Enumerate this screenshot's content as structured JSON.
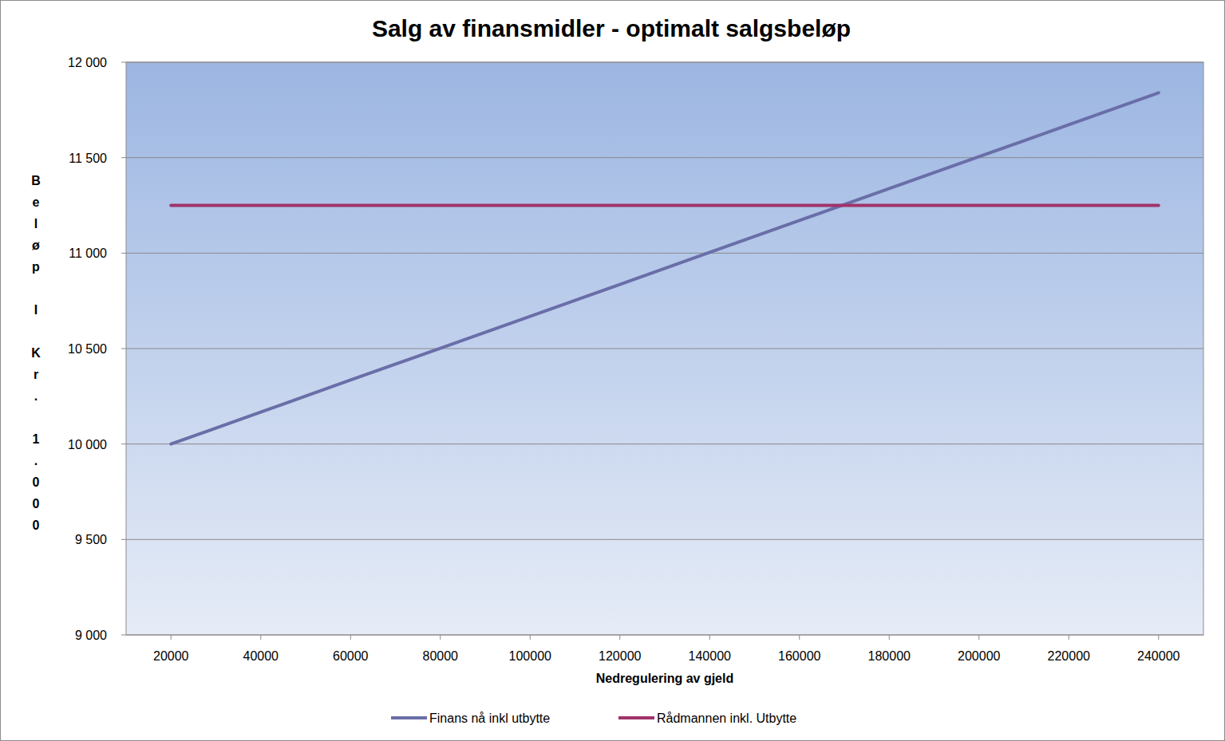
{
  "chart_data": {
    "type": "line",
    "title": "Salg av finansmidler - optimalt salgsbeløp",
    "x_label": "Nedregulering av gjeld",
    "y_label": "Beløp I Kr. 1.000",
    "x": [
      20000,
      40000,
      60000,
      80000,
      100000,
      120000,
      140000,
      160000,
      180000,
      200000,
      220000,
      240000
    ],
    "series": [
      {
        "name": "Finans nå inkl utbytte",
        "color": "#6a6ea8",
        "values": [
          10000,
          10167,
          10335,
          10502,
          10669,
          10836,
          11004,
          11171,
          11338,
          11505,
          11673,
          11840
        ]
      },
      {
        "name": "Rådmannen inkl. Utbytte",
        "color": "#a0336a",
        "values": [
          11250,
          11250,
          11250,
          11250,
          11250,
          11250,
          11250,
          11250,
          11250,
          11250,
          11250,
          11250
        ]
      }
    ],
    "xlim": [
      10000,
      250000
    ],
    "xticks": [
      20000,
      40000,
      60000,
      80000,
      100000,
      120000,
      140000,
      160000,
      180000,
      200000,
      220000,
      240000
    ],
    "ylim": [
      9000,
      12000
    ],
    "yticks": [
      {
        "value": 9000,
        "label": "9 000"
      },
      {
        "value": 9500,
        "label": "9 500"
      },
      {
        "value": 10000,
        "label": "10 000"
      },
      {
        "value": 10500,
        "label": "10 500"
      },
      {
        "value": 11000,
        "label": "11 000"
      },
      {
        "value": 11500,
        "label": "11 500"
      },
      {
        "value": 12000,
        "label": "12 000"
      }
    ],
    "grid": true,
    "legend": "bottom"
  }
}
